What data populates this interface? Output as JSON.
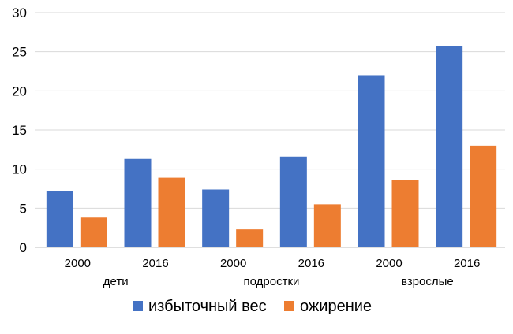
{
  "chart_data": {
    "type": "bar",
    "title": "",
    "xlabel": "",
    "ylabel": "",
    "ylim": [
      0,
      30
    ],
    "yticks": [
      0,
      5,
      10,
      15,
      20,
      25,
      30
    ],
    "grid": true,
    "legend_position": "bottom",
    "groups": [
      {
        "label": "дети",
        "categories": [
          "2000",
          "2016"
        ]
      },
      {
        "label": "подростки",
        "categories": [
          "2000",
          "2016"
        ]
      },
      {
        "label": "взрослые",
        "categories": [
          "2000",
          "2016"
        ]
      }
    ],
    "categories": [
      "2000",
      "2016",
      "2000",
      "2016",
      "2000",
      "2016"
    ],
    "series": [
      {
        "name": "избыточный вес",
        "color": "#4472C4",
        "values": [
          7.2,
          11.3,
          7.4,
          11.6,
          22.0,
          25.7
        ]
      },
      {
        "name": "ожирение",
        "color": "#ED7D31",
        "values": [
          3.8,
          8.9,
          2.3,
          5.5,
          8.6,
          13.0
        ]
      }
    ]
  }
}
